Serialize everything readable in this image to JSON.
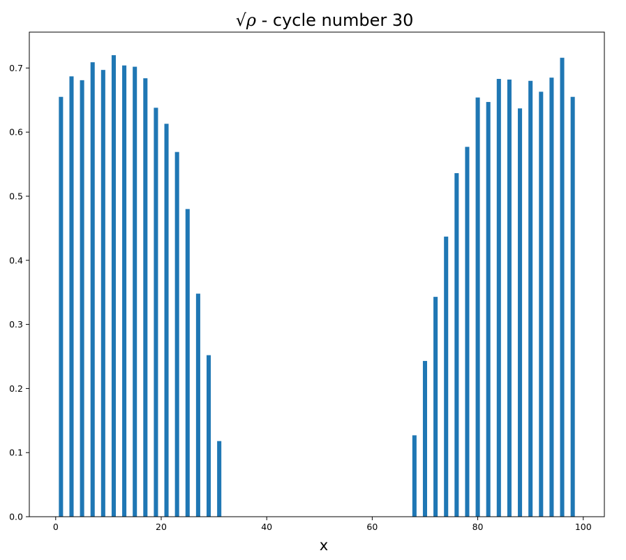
{
  "chart_data": {
    "type": "bar",
    "title_prefix": "√ρ",
    "title_suffix": " - cycle number 30",
    "xlabel": "x",
    "ylabel": "",
    "xlim": [
      -5,
      104
    ],
    "ylim": [
      0,
      0.756
    ],
    "xticks": [
      0,
      20,
      40,
      60,
      80,
      100
    ],
    "yticks": [
      0.0,
      0.1,
      0.2,
      0.3,
      0.4,
      0.5,
      0.6,
      0.7
    ],
    "bar_width": 0.8,
    "grid": false,
    "color": "#1f77b4",
    "x": [
      1,
      3,
      5,
      7,
      9,
      11,
      13,
      15,
      17,
      19,
      21,
      23,
      25,
      27,
      29,
      31,
      68,
      70,
      72,
      74,
      76,
      78,
      80,
      82,
      84,
      86,
      88,
      90,
      92,
      94,
      96,
      98
    ],
    "values": [
      0.655,
      0.687,
      0.681,
      0.709,
      0.697,
      0.72,
      0.704,
      0.702,
      0.684,
      0.638,
      0.613,
      0.569,
      0.48,
      0.348,
      0.252,
      0.118,
      0.127,
      0.243,
      0.343,
      0.437,
      0.536,
      0.577,
      0.654,
      0.647,
      0.683,
      0.682,
      0.637,
      0.68,
      0.663,
      0.685,
      0.716,
      0.655
    ]
  }
}
